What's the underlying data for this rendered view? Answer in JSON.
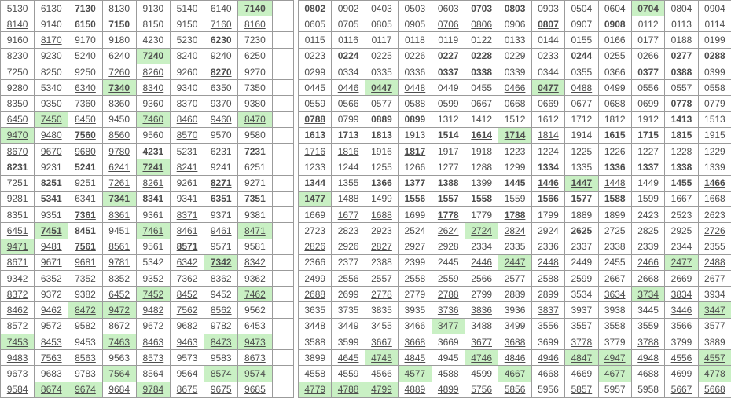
{
  "page_description": "two side-by-side grids of 4-digit lottery number combinations",
  "colors": {
    "num_black": "#4d4d4d",
    "num_red": "#e60000",
    "num_blue": "#3a3ace",
    "hit_green": "#c9f0c4",
    "border": "#9b9b9b"
  },
  "flag_legend": "after | : r=red-bold text, b=blue text, u=underlined, g=green highlighted background, B=bold",
  "left_table": {
    "columns": 8,
    "has_trailing_empty_column": true,
    "rows": [
      [
        "5130",
        "6130",
        "7130|r",
        "8130",
        "9130",
        "5140",
        "6140|u",
        "7140|rug"
      ],
      [
        "8140|u",
        "9140",
        "6150|r",
        "7150|r",
        "8150",
        "9150",
        "7160|u",
        "8160|u"
      ],
      [
        "9160",
        "8170|u",
        "9170",
        "9180",
        "4230",
        "5230",
        "6230|r",
        "7230"
      ],
      [
        "8230",
        "9230",
        "5240",
        "6240|u",
        "7240|rug",
        "8240|u",
        "9240",
        "6250"
      ],
      [
        "7250",
        "8250",
        "9250",
        "7260|u",
        "8260|u",
        "9260",
        "8270|ru",
        "9270"
      ],
      [
        "9280|b",
        "5340",
        "6340|u",
        "7340|rug",
        "8340|u",
        "9340",
        "6350",
        "7350"
      ],
      [
        "8350",
        "9350",
        "7360|u",
        "8360|u",
        "9360",
        "8370|u",
        "9370",
        "9380"
      ],
      [
        "6450|u",
        "7450|ug",
        "8450|u",
        "9450",
        "7460|ug",
        "8460|u",
        "9460|u",
        "8470|ug"
      ],
      [
        "9470|ug",
        "9480|u",
        "7560|ru",
        "8560|u",
        "9560",
        "8570|u",
        "9570",
        "9580"
      ],
      [
        "8670|u",
        "9670|u",
        "9680|u",
        "9780|u",
        "4231|r",
        "5231",
        "6231|b",
        "7231|r"
      ],
      [
        "8231|r",
        "9231",
        "5241|r",
        "6241|u",
        "7241|rug",
        "8241|u",
        "9241",
        "6251"
      ],
      [
        "7251",
        "8251|r",
        "9251",
        "7261|u",
        "8261|u",
        "9261",
        "8271|ru",
        "9271"
      ],
      [
        "9281",
        "5341|r",
        "6341|u",
        "7341|rug",
        "8341|ru",
        "9341",
        "6351|r",
        "7351|r"
      ],
      [
        "8351",
        "9351",
        "7361|ru",
        "8361|u",
        "9361",
        "8371|u",
        "9371",
        "9381"
      ],
      [
        "6451|u",
        "7451|rug",
        "8451|r",
        "9451",
        "7461|ug",
        "8461|u",
        "9461|u",
        "8471|ug"
      ],
      [
        "9471|ug",
        "9481|u",
        "7561|ru",
        "8561|u",
        "9561",
        "8571|ru",
        "9571",
        "9581"
      ],
      [
        "8671|u",
        "9671|u",
        "9681|u",
        "9781|u",
        "5342|b",
        "6342|bu",
        "7342|rug",
        "8342|bu"
      ],
      [
        "9342|b",
        "6352|b",
        "7352|b",
        "8352|b",
        "9352|b",
        "7362|bu",
        "8362|bu",
        "9362|b"
      ],
      [
        "8372|bu",
        "9372|b",
        "9382|b",
        "6452|bu",
        "7452|bug",
        "8452|bu",
        "9452|b",
        "7462|bug"
      ],
      [
        "8462|bu",
        "9462|bu",
        "8472|bug",
        "9472|bug",
        "9482|bu",
        "7562|bu",
        "8562|bu",
        "9562|b"
      ],
      [
        "8572|bu",
        "9572|b",
        "9582|b",
        "8672|bu",
        "9672|bu",
        "9682|bu",
        "9782|bu",
        "6453|u"
      ],
      [
        "7453|ug",
        "8453|u",
        "9453",
        "7463|ug",
        "8463|u",
        "9463|u",
        "8473|ug",
        "9473|ug"
      ],
      [
        "9483|u",
        "7563|u",
        "8563|u",
        "9563",
        "8573|u",
        "9573",
        "9583",
        "8673|u"
      ],
      [
        "9673|u",
        "9683|u",
        "9783|u",
        "7564|ug",
        "8564|u",
        "9564|u",
        "8574|ug",
        "9574|ug"
      ],
      [
        "9584|u",
        "8674|ug",
        "9674|ug",
        "9684|u",
        "9784|ug",
        "8675|u",
        "9675|u",
        "9685|u"
      ]
    ]
  },
  "right_table": {
    "columns": 13,
    "has_trailing_empty_column": false,
    "rows": [
      [
        "0802|r",
        "0902",
        "0403",
        "0503",
        "0603",
        "0703|r",
        "0803|r",
        "0903",
        "0504",
        "0604|u",
        "0704|rug",
        "0804|u",
        "0904"
      ],
      [
        "0605",
        "0705",
        "0805",
        "0905",
        "0706|u",
        "0806|u",
        "0906",
        "0807|ru",
        "0907",
        "0908|r",
        "0112|b",
        "0113",
        "0114"
      ],
      [
        "0115",
        "0116",
        "0117",
        "0118",
        "0119|b",
        "0122|b",
        "0133",
        "0144",
        "0155",
        "0166",
        "0177",
        "0188",
        "0199|b"
      ],
      [
        "0223",
        "0224|r",
        "0225",
        "0226",
        "0227|r",
        "0228|r",
        "0229",
        "0233",
        "0244|r",
        "0255",
        "0266",
        "0277|r",
        "0288|r"
      ],
      [
        "0299|b",
        "0334",
        "0335",
        "0336",
        "0337|r",
        "0338|r",
        "0339|b",
        "0344",
        "0355",
        "0366",
        "0377|r",
        "0388|r",
        "0399|b"
      ],
      [
        "0445",
        "0446|u",
        "0447|rug",
        "0448|u",
        "0449|b",
        "0455",
        "0466|u",
        "0477|rug",
        "0488|u",
        "0499|b",
        "0556",
        "0557",
        "0558"
      ],
      [
        "0559|b",
        "0566",
        "0577",
        "0588",
        "0599|b",
        "0667|u",
        "0668|u",
        "0669|b",
        "0677|u",
        "0688|u",
        "0699|b",
        "0778|ru",
        "0779|b"
      ],
      [
        "0788|ru",
        "0799|b",
        "0889|r",
        "0899|bB",
        "1312|b",
        "1412|b",
        "1512|b",
        "1612|b",
        "1712|b",
        "1812|b",
        "1912|b",
        "1413|r",
        "1513"
      ],
      [
        "1613|r",
        "1713|r",
        "1813|r",
        "1913",
        "1514|r",
        "1614|ru",
        "1714|bBug",
        "1814|u",
        "1914|b",
        "1615|r",
        "1715|r",
        "1815|r",
        "1915"
      ],
      [
        "1716|u",
        "1816|u",
        "1916",
        "1817|ru",
        "1917|b",
        "1918",
        "1223|b",
        "1224|b",
        "1225|b",
        "1226|b",
        "1227|b",
        "1228|b",
        "1229|b"
      ],
      [
        "1233",
        "1244",
        "1255",
        "1266",
        "1277",
        "1288",
        "1299|b",
        "1334|r",
        "1335",
        "1336|r",
        "1337|r",
        "1338|r",
        "1339|b"
      ],
      [
        "1344|r",
        "1355",
        "1366|r",
        "1377|r",
        "1388|r",
        "1399",
        "1445|r",
        "1446|ru",
        "1447|rug",
        "1448|u",
        "1449",
        "1455|r",
        "1466|ru"
      ],
      [
        "1477|rug",
        "1488|u",
        "1499|b",
        "1556|r",
        "1557|r",
        "1558|r",
        "1559",
        "1566|r",
        "1577|r",
        "1588|r",
        "1599",
        "1667|u",
        "1668|u"
      ],
      [
        "1669|b",
        "1677|u",
        "1688|u",
        "1699|b",
        "1778|ru",
        "1779",
        "1788|ru",
        "1799",
        "1889",
        "1899",
        "2423|b",
        "2523|b",
        "2623|b"
      ],
      [
        "2723",
        "2823|b",
        "2923|b",
        "2524",
        "2624|u",
        "2724|bug",
        "2824|bu",
        "2924|b",
        "2625|bB",
        "2725|b",
        "2825|b",
        "2925|b",
        "2726|bu"
      ],
      [
        "2826|bu",
        "2926|b",
        "2827|bu",
        "2927|b",
        "2928|b",
        "2334|b",
        "2335|b",
        "2336|b",
        "2337|b",
        "2338|b",
        "2339|b",
        "2344|b",
        "2355|b"
      ],
      [
        "2366",
        "2377",
        "2388",
        "2399|b",
        "2445|b",
        "2446|bu",
        "2447|bug",
        "2448|bu",
        "2449|b",
        "2455|b",
        "2466|bu",
        "2477|bug",
        "2488|bu"
      ],
      [
        "2499|b",
        "2556",
        "2557",
        "2558",
        "2559|b",
        "2566|b",
        "2577|b",
        "2588|b",
        "2599|b",
        "2667|bu",
        "2668|bu",
        "2669|b",
        "2677|bu"
      ],
      [
        "2688|bu",
        "2699|b",
        "2778|bu",
        "2779|b",
        "2788|bu",
        "2799|b",
        "2889|b",
        "2899|b",
        "3534",
        "3634|u",
        "3734|ug",
        "3834|u",
        "3934"
      ],
      [
        "3635",
        "3735",
        "3835",
        "3935",
        "3736|u",
        "3836|u",
        "3936",
        "3837|u",
        "3937",
        "3938",
        "3445",
        "3446|u",
        "3447|ug"
      ],
      [
        "3448|u",
        "3449",
        "3455",
        "3466|u",
        "3477|ug",
        "3488|u",
        "3499",
        "3556",
        "3557",
        "3558",
        "3559",
        "3566",
        "3577"
      ],
      [
        "3588",
        "3599",
        "3667|u",
        "3668|u",
        "3669",
        "3677|u",
        "3688|u",
        "3699|b",
        "3778|u",
        "3779",
        "3788|u",
        "3799",
        "3889"
      ],
      [
        "3899|b",
        "4645|u",
        "4745|ug",
        "4845|u",
        "4945",
        "4746|ug",
        "4846|u",
        "4946|u",
        "4847|ug",
        "4947|ug",
        "4948|u",
        "4556|u",
        "4557|ug"
      ],
      [
        "4558|u",
        "4559",
        "4566|u",
        "4577|ug",
        "4588|u",
        "4599",
        "4667|ug",
        "4668|u",
        "4669|bu",
        "4677|ug",
        "4688|u",
        "4699|u",
        "4778|ug"
      ],
      [
        "4779|bug",
        "4788|ug",
        "4799|bug",
        "4889|bu",
        "4899|bu",
        "5756|u",
        "5856|u",
        "5956",
        "5857|u",
        "5957",
        "5958",
        "5667|u",
        "5668|u"
      ]
    ]
  }
}
